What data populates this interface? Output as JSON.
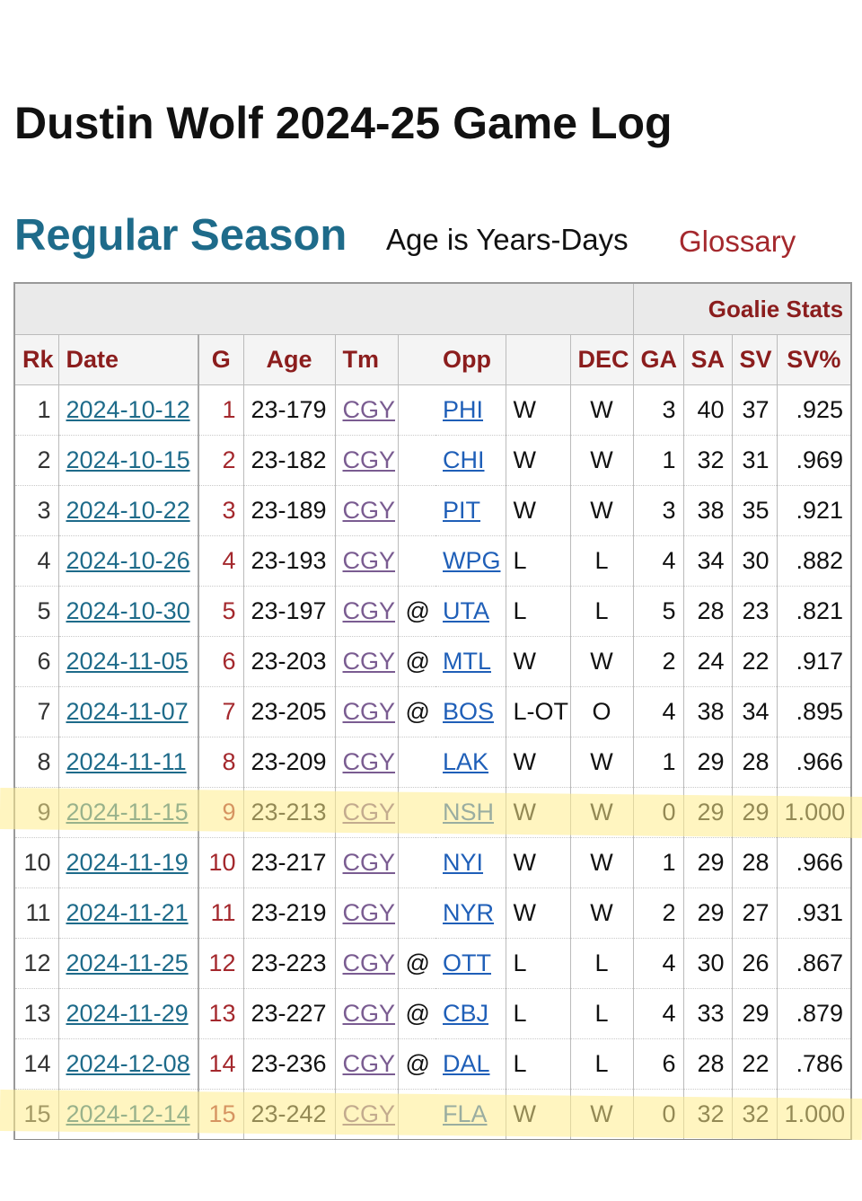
{
  "header": {
    "title": "Dustin Wolf 2024-25 Game Log"
  },
  "section": {
    "heading": "Regular Season",
    "age_note": "Age is Years-Days",
    "glossary_label": "Glossary"
  },
  "table": {
    "group_header": "Goalie Stats",
    "columns": [
      "Rk",
      "Date",
      "G",
      "Age",
      "Tm",
      "",
      "Opp",
      "",
      "DEC",
      "GA",
      "SA",
      "SV",
      "SV%"
    ],
    "rows": [
      {
        "rk": "1",
        "date": "2024-10-12",
        "g": "1",
        "age": "23-179",
        "tm": "CGY",
        "at": "",
        "opp": "PHI",
        "res": "W",
        "dec": "W",
        "ga": "3",
        "sa": "40",
        "sv": "37",
        "svp": ".925"
      },
      {
        "rk": "2",
        "date": "2024-10-15",
        "g": "2",
        "age": "23-182",
        "tm": "CGY",
        "at": "",
        "opp": "CHI",
        "res": "W",
        "dec": "W",
        "ga": "1",
        "sa": "32",
        "sv": "31",
        "svp": ".969"
      },
      {
        "rk": "3",
        "date": "2024-10-22",
        "g": "3",
        "age": "23-189",
        "tm": "CGY",
        "at": "",
        "opp": "PIT",
        "res": "W",
        "dec": "W",
        "ga": "3",
        "sa": "38",
        "sv": "35",
        "svp": ".921"
      },
      {
        "rk": "4",
        "date": "2024-10-26",
        "g": "4",
        "age": "23-193",
        "tm": "CGY",
        "at": "",
        "opp": "WPG",
        "res": "L",
        "dec": "L",
        "ga": "4",
        "sa": "34",
        "sv": "30",
        "svp": ".882"
      },
      {
        "rk": "5",
        "date": "2024-10-30",
        "g": "5",
        "age": "23-197",
        "tm": "CGY",
        "at": "@",
        "opp": "UTA",
        "res": "L",
        "dec": "L",
        "ga": "5",
        "sa": "28",
        "sv": "23",
        "svp": ".821"
      },
      {
        "rk": "6",
        "date": "2024-11-05",
        "g": "6",
        "age": "23-203",
        "tm": "CGY",
        "at": "@",
        "opp": "MTL",
        "res": "W",
        "dec": "W",
        "ga": "2",
        "sa": "24",
        "sv": "22",
        "svp": ".917"
      },
      {
        "rk": "7",
        "date": "2024-11-07",
        "g": "7",
        "age": "23-205",
        "tm": "CGY",
        "at": "@",
        "opp": "BOS",
        "res": "L-OT",
        "dec": "O",
        "ga": "4",
        "sa": "38",
        "sv": "34",
        "svp": ".895"
      },
      {
        "rk": "8",
        "date": "2024-11-11",
        "g": "8",
        "age": "23-209",
        "tm": "CGY",
        "at": "",
        "opp": "LAK",
        "res": "W",
        "dec": "W",
        "ga": "1",
        "sa": "29",
        "sv": "28",
        "svp": ".966"
      },
      {
        "rk": "9",
        "date": "2024-11-15",
        "g": "9",
        "age": "23-213",
        "tm": "CGY",
        "at": "",
        "opp": "NSH",
        "res": "W",
        "dec": "W",
        "ga": "0",
        "sa": "29",
        "sv": "29",
        "svp": "1.000",
        "highlighted": true
      },
      {
        "rk": "10",
        "date": "2024-11-19",
        "g": "10",
        "age": "23-217",
        "tm": "CGY",
        "at": "",
        "opp": "NYI",
        "res": "W",
        "dec": "W",
        "ga": "1",
        "sa": "29",
        "sv": "28",
        "svp": ".966"
      },
      {
        "rk": "11",
        "date": "2024-11-21",
        "g": "11",
        "age": "23-219",
        "tm": "CGY",
        "at": "",
        "opp": "NYR",
        "res": "W",
        "dec": "W",
        "ga": "2",
        "sa": "29",
        "sv": "27",
        "svp": ".931"
      },
      {
        "rk": "12",
        "date": "2024-11-25",
        "g": "12",
        "age": "23-223",
        "tm": "CGY",
        "at": "@",
        "opp": "OTT",
        "res": "L",
        "dec": "L",
        "ga": "4",
        "sa": "30",
        "sv": "26",
        "svp": ".867"
      },
      {
        "rk": "13",
        "date": "2024-11-29",
        "g": "13",
        "age": "23-227",
        "tm": "CGY",
        "at": "@",
        "opp": "CBJ",
        "res": "L",
        "dec": "L",
        "ga": "4",
        "sa": "33",
        "sv": "29",
        "svp": ".879"
      },
      {
        "rk": "14",
        "date": "2024-12-08",
        "g": "14",
        "age": "23-236",
        "tm": "CGY",
        "at": "@",
        "opp": "DAL",
        "res": "L",
        "dec": "L",
        "ga": "6",
        "sa": "28",
        "sv": "22",
        "svp": ".786"
      },
      {
        "rk": "15",
        "date": "2024-12-14",
        "g": "15",
        "age": "23-242",
        "tm": "CGY",
        "at": "",
        "opp": "FLA",
        "res": "W",
        "dec": "W",
        "ga": "0",
        "sa": "32",
        "sv": "32",
        "svp": "1.000",
        "highlighted": true
      }
    ]
  },
  "colors": {
    "heading_blue": "#1e6b8a",
    "header_red": "#8b1d1d",
    "link_blue": "#1f5fb8",
    "team_purple": "#7a5c91",
    "highlight_yellow": "#ffec8c"
  }
}
